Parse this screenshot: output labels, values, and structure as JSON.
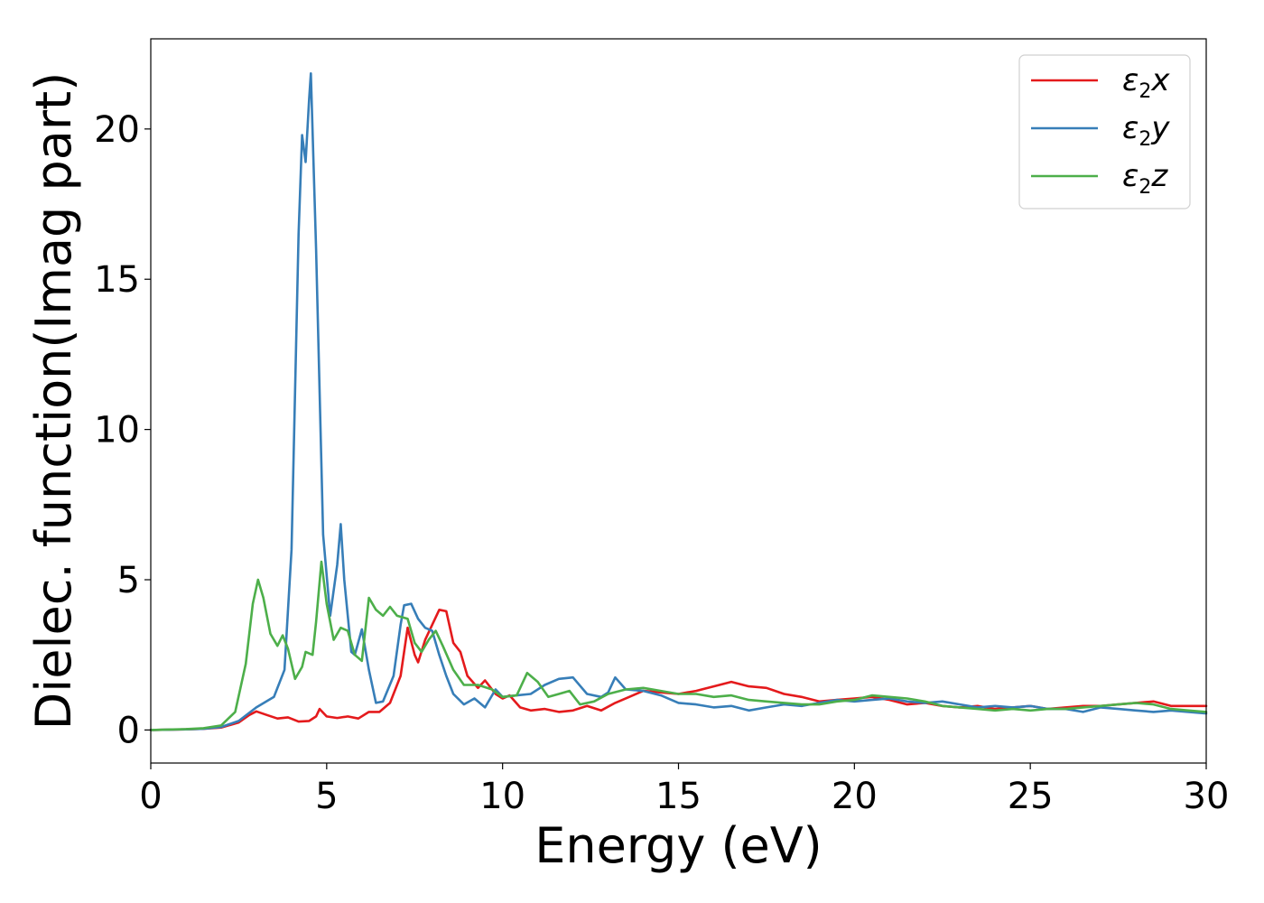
{
  "chart_data": {
    "type": "line",
    "xlabel": "Energy (eV)",
    "ylabel": "Dielec. function(Imag part)",
    "xlim": [
      0,
      30
    ],
    "ylim": [
      -1.1,
      23
    ],
    "xticks": [
      0,
      5,
      10,
      15,
      20,
      25,
      30
    ],
    "yticks": [
      0,
      5,
      10,
      15,
      20
    ],
    "grid": false,
    "legend_position": "top-right",
    "series": [
      {
        "name": "ε2x",
        "legend": {
          "main": "ε",
          "sub": "2",
          "suffix": "x"
        },
        "color": "#e41a1c",
        "points": [
          [
            0,
            0
          ],
          [
            1,
            0.02
          ],
          [
            1.5,
            0.04
          ],
          [
            2,
            0.08
          ],
          [
            2.5,
            0.25
          ],
          [
            2.8,
            0.5
          ],
          [
            3.0,
            0.62
          ],
          [
            3.3,
            0.5
          ],
          [
            3.6,
            0.38
          ],
          [
            3.9,
            0.42
          ],
          [
            4.2,
            0.28
          ],
          [
            4.5,
            0.3
          ],
          [
            4.7,
            0.45
          ],
          [
            4.8,
            0.7
          ],
          [
            5.0,
            0.45
          ],
          [
            5.3,
            0.4
          ],
          [
            5.6,
            0.45
          ],
          [
            5.9,
            0.38
          ],
          [
            6.2,
            0.6
          ],
          [
            6.5,
            0.6
          ],
          [
            6.8,
            0.9
          ],
          [
            7.1,
            1.8
          ],
          [
            7.3,
            3.4
          ],
          [
            7.5,
            2.5
          ],
          [
            7.6,
            2.25
          ],
          [
            7.8,
            3.0
          ],
          [
            8.0,
            3.5
          ],
          [
            8.2,
            4.0
          ],
          [
            8.4,
            3.95
          ],
          [
            8.6,
            2.9
          ],
          [
            8.8,
            2.6
          ],
          [
            9.0,
            1.8
          ],
          [
            9.3,
            1.4
          ],
          [
            9.5,
            1.65
          ],
          [
            9.8,
            1.2
          ],
          [
            10.0,
            1.05
          ],
          [
            10.2,
            1.15
          ],
          [
            10.5,
            0.75
          ],
          [
            10.8,
            0.65
          ],
          [
            11.2,
            0.7
          ],
          [
            11.6,
            0.6
          ],
          [
            12.0,
            0.65
          ],
          [
            12.4,
            0.8
          ],
          [
            12.8,
            0.65
          ],
          [
            13.2,
            0.9
          ],
          [
            13.6,
            1.1
          ],
          [
            14.0,
            1.3
          ],
          [
            14.5,
            1.25
          ],
          [
            15.0,
            1.2
          ],
          [
            15.5,
            1.3
          ],
          [
            16.0,
            1.45
          ],
          [
            16.5,
            1.6
          ],
          [
            17.0,
            1.45
          ],
          [
            17.5,
            1.4
          ],
          [
            18.0,
            1.2
          ],
          [
            18.5,
            1.1
          ],
          [
            19.0,
            0.95
          ],
          [
            19.5,
            1.0
          ],
          [
            20.0,
            1.05
          ],
          [
            20.5,
            1.1
          ],
          [
            21.0,
            1.0
          ],
          [
            21.5,
            0.85
          ],
          [
            22.0,
            0.9
          ],
          [
            22.5,
            0.8
          ],
          [
            23.0,
            0.75
          ],
          [
            23.5,
            0.8
          ],
          [
            24.0,
            0.7
          ],
          [
            24.5,
            0.75
          ],
          [
            25.0,
            0.8
          ],
          [
            25.5,
            0.7
          ],
          [
            26.0,
            0.75
          ],
          [
            26.5,
            0.8
          ],
          [
            27.0,
            0.8
          ],
          [
            27.5,
            0.85
          ],
          [
            28.0,
            0.9
          ],
          [
            28.5,
            0.95
          ],
          [
            29.0,
            0.8
          ],
          [
            29.5,
            0.8
          ],
          [
            30.0,
            0.8
          ]
        ]
      },
      {
        "name": "ε2y",
        "legend": {
          "main": "ε",
          "sub": "2",
          "suffix": "y"
        },
        "color": "#377eb8",
        "points": [
          [
            0,
            0
          ],
          [
            1,
            0.02
          ],
          [
            1.5,
            0.04
          ],
          [
            2,
            0.1
          ],
          [
            2.5,
            0.3
          ],
          [
            3.0,
            0.75
          ],
          [
            3.5,
            1.1
          ],
          [
            3.8,
            2.0
          ],
          [
            4.0,
            6.0
          ],
          [
            4.2,
            16.5
          ],
          [
            4.3,
            19.8
          ],
          [
            4.4,
            18.9
          ],
          [
            4.5,
            21.0
          ],
          [
            4.55,
            21.85
          ],
          [
            4.7,
            16.0
          ],
          [
            4.9,
            6.5
          ],
          [
            5.1,
            3.8
          ],
          [
            5.3,
            5.5
          ],
          [
            5.4,
            6.85
          ],
          [
            5.5,
            5.0
          ],
          [
            5.7,
            2.6
          ],
          [
            5.8,
            2.5
          ],
          [
            6.0,
            3.35
          ],
          [
            6.2,
            2.0
          ],
          [
            6.4,
            0.9
          ],
          [
            6.6,
            0.95
          ],
          [
            6.9,
            1.8
          ],
          [
            7.1,
            3.5
          ],
          [
            7.2,
            4.15
          ],
          [
            7.4,
            4.2
          ],
          [
            7.6,
            3.7
          ],
          [
            7.8,
            3.4
          ],
          [
            8.0,
            3.3
          ],
          [
            8.2,
            2.5
          ],
          [
            8.4,
            1.8
          ],
          [
            8.6,
            1.2
          ],
          [
            8.9,
            0.85
          ],
          [
            9.2,
            1.05
          ],
          [
            9.5,
            0.75
          ],
          [
            9.8,
            1.35
          ],
          [
            10.0,
            1.1
          ],
          [
            10.4,
            1.15
          ],
          [
            10.8,
            1.2
          ],
          [
            11.2,
            1.5
          ],
          [
            11.6,
            1.7
          ],
          [
            12.0,
            1.75
          ],
          [
            12.4,
            1.2
          ],
          [
            12.8,
            1.1
          ],
          [
            13.0,
            1.25
          ],
          [
            13.2,
            1.75
          ],
          [
            13.5,
            1.35
          ],
          [
            14.0,
            1.3
          ],
          [
            14.5,
            1.15
          ],
          [
            15.0,
            0.9
          ],
          [
            15.5,
            0.85
          ],
          [
            16.0,
            0.75
          ],
          [
            16.5,
            0.8
          ],
          [
            17.0,
            0.65
          ],
          [
            17.5,
            0.75
          ],
          [
            18.0,
            0.85
          ],
          [
            18.5,
            0.8
          ],
          [
            19.0,
            0.9
          ],
          [
            19.5,
            1.0
          ],
          [
            20.0,
            0.95
          ],
          [
            20.5,
            1.0
          ],
          [
            21.0,
            1.05
          ],
          [
            21.5,
            0.95
          ],
          [
            22.0,
            0.9
          ],
          [
            22.5,
            0.95
          ],
          [
            23.0,
            0.85
          ],
          [
            23.5,
            0.75
          ],
          [
            24.0,
            0.8
          ],
          [
            24.5,
            0.75
          ],
          [
            25.0,
            0.8
          ],
          [
            25.5,
            0.7
          ],
          [
            26.0,
            0.7
          ],
          [
            26.5,
            0.6
          ],
          [
            27.0,
            0.75
          ],
          [
            27.5,
            0.7
          ],
          [
            28.0,
            0.65
          ],
          [
            28.5,
            0.6
          ],
          [
            29.0,
            0.65
          ],
          [
            29.5,
            0.6
          ],
          [
            30.0,
            0.55
          ]
        ]
      },
      {
        "name": "ε2z",
        "legend": {
          "main": "ε",
          "sub": "2",
          "suffix": "z"
        },
        "color": "#4daf4a",
        "points": [
          [
            0,
            0
          ],
          [
            1,
            0.03
          ],
          [
            1.5,
            0.06
          ],
          [
            2,
            0.15
          ],
          [
            2.4,
            0.6
          ],
          [
            2.7,
            2.2
          ],
          [
            2.9,
            4.2
          ],
          [
            3.05,
            5.0
          ],
          [
            3.2,
            4.4
          ],
          [
            3.4,
            3.2
          ],
          [
            3.6,
            2.8
          ],
          [
            3.75,
            3.15
          ],
          [
            3.9,
            2.7
          ],
          [
            4.1,
            1.7
          ],
          [
            4.3,
            2.1
          ],
          [
            4.4,
            2.6
          ],
          [
            4.6,
            2.5
          ],
          [
            4.7,
            3.6
          ],
          [
            4.85,
            5.6
          ],
          [
            5.0,
            4.2
          ],
          [
            5.2,
            3.0
          ],
          [
            5.4,
            3.4
          ],
          [
            5.6,
            3.3
          ],
          [
            5.8,
            2.5
          ],
          [
            6.0,
            2.3
          ],
          [
            6.2,
            4.4
          ],
          [
            6.4,
            4.0
          ],
          [
            6.6,
            3.8
          ],
          [
            6.8,
            4.1
          ],
          [
            7.0,
            3.8
          ],
          [
            7.3,
            3.7
          ],
          [
            7.5,
            2.9
          ],
          [
            7.7,
            2.6
          ],
          [
            7.9,
            3.0
          ],
          [
            8.1,
            3.3
          ],
          [
            8.3,
            2.8
          ],
          [
            8.6,
            2.0
          ],
          [
            8.9,
            1.5
          ],
          [
            9.3,
            1.5
          ],
          [
            9.7,
            1.35
          ],
          [
            10.0,
            1.1
          ],
          [
            10.4,
            1.15
          ],
          [
            10.7,
            1.9
          ],
          [
            11.0,
            1.6
          ],
          [
            11.3,
            1.1
          ],
          [
            11.6,
            1.2
          ],
          [
            11.9,
            1.3
          ],
          [
            12.2,
            0.85
          ],
          [
            12.6,
            0.95
          ],
          [
            13.0,
            1.2
          ],
          [
            13.5,
            1.35
          ],
          [
            14.0,
            1.4
          ],
          [
            14.5,
            1.3
          ],
          [
            15.0,
            1.2
          ],
          [
            15.5,
            1.2
          ],
          [
            16.0,
            1.1
          ],
          [
            16.5,
            1.15
          ],
          [
            17.0,
            1.0
          ],
          [
            17.5,
            0.95
          ],
          [
            18.0,
            0.9
          ],
          [
            18.5,
            0.85
          ],
          [
            19.0,
            0.85
          ],
          [
            19.5,
            0.95
          ],
          [
            20.0,
            1.0
          ],
          [
            20.5,
            1.15
          ],
          [
            21.0,
            1.1
          ],
          [
            21.5,
            1.05
          ],
          [
            22.0,
            0.95
          ],
          [
            22.5,
            0.8
          ],
          [
            23.0,
            0.75
          ],
          [
            23.5,
            0.7
          ],
          [
            24.0,
            0.65
          ],
          [
            24.5,
            0.7
          ],
          [
            25.0,
            0.65
          ],
          [
            25.5,
            0.7
          ],
          [
            26.0,
            0.7
          ],
          [
            26.5,
            0.75
          ],
          [
            27.0,
            0.8
          ],
          [
            27.5,
            0.85
          ],
          [
            28.0,
            0.9
          ],
          [
            28.5,
            0.85
          ],
          [
            29.0,
            0.7
          ],
          [
            29.5,
            0.65
          ],
          [
            30.0,
            0.6
          ]
        ]
      }
    ]
  }
}
